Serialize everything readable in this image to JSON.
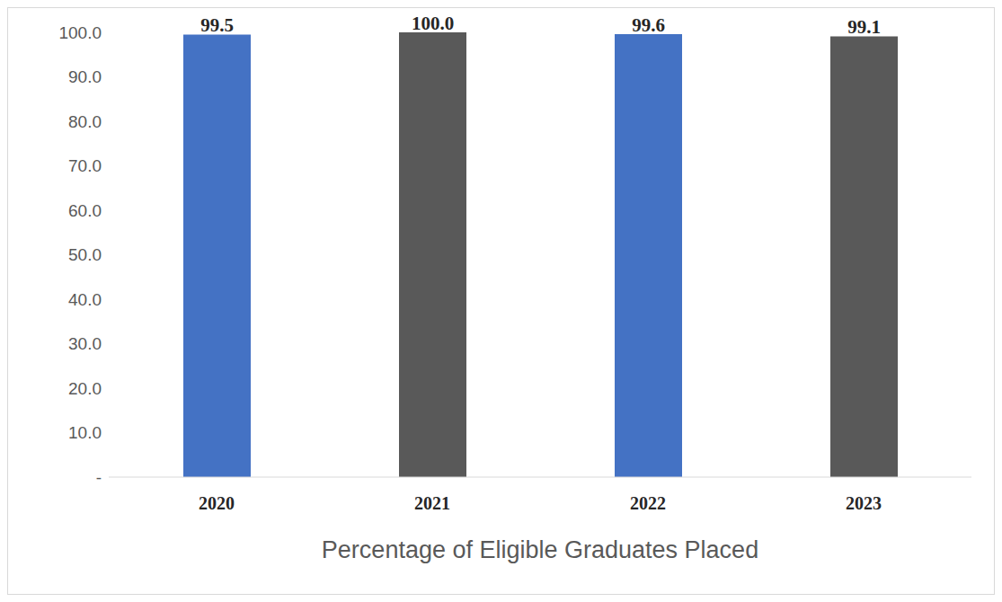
{
  "chart_data": {
    "type": "bar",
    "x_label": "Percentage of Eligible Graduates Placed",
    "categories": [
      "2020",
      "2021",
      "2022",
      "2023"
    ],
    "values": [
      99.5,
      100.0,
      99.6,
      99.1
    ],
    "value_labels": [
      "99.5",
      "100.0",
      "99.6",
      "99.1"
    ],
    "colors": [
      "#4472c4",
      "#595959",
      "#4472c4",
      "#595959"
    ],
    "ylim": [
      0,
      100
    ],
    "yticks": [
      {
        "value": 0,
        "label": "-"
      },
      {
        "value": 10,
        "label": "10.0"
      },
      {
        "value": 20,
        "label": "20.0"
      },
      {
        "value": 30,
        "label": "30.0"
      },
      {
        "value": 40,
        "label": "40.0"
      },
      {
        "value": 50,
        "label": "50.0"
      },
      {
        "value": 60,
        "label": "60.0"
      },
      {
        "value": 70,
        "label": "70.0"
      },
      {
        "value": 80,
        "label": "80.0"
      },
      {
        "value": 90,
        "label": "90.0"
      },
      {
        "value": 100,
        "label": "100.0"
      }
    ],
    "grid": false,
    "data_labels": true
  }
}
